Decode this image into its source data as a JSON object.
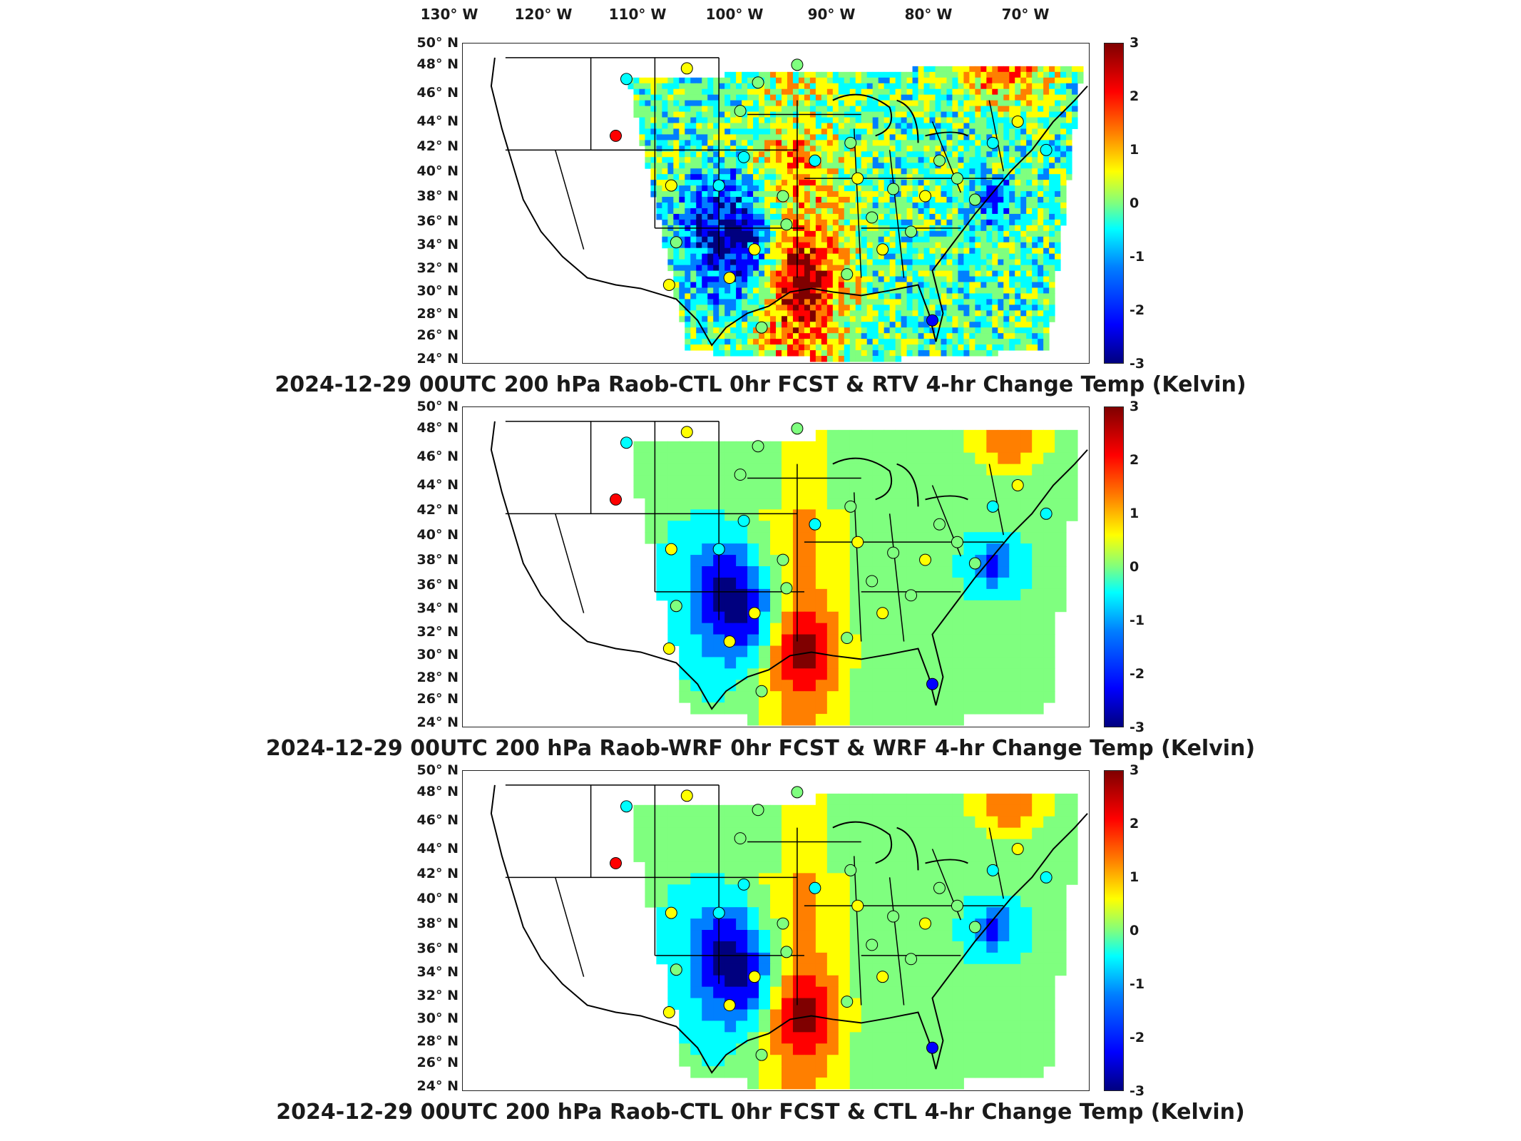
{
  "longitude_labels": [
    "130° W",
    "120° W",
    "110° W",
    "100° W",
    "90° W",
    "80° W",
    "70° W"
  ],
  "latitude_labels": [
    "50° N",
    "48° N",
    "46° N",
    "44° N",
    "42° N",
    "40° N",
    "38° N",
    "36° N",
    "34° N",
    "32° N",
    "30° N",
    "28° N",
    "26° N",
    "24° N"
  ],
  "colorbar": {
    "ticks": [
      "3",
      "2",
      "1",
      "0",
      "-1",
      "-2",
      "-3"
    ],
    "range": [
      -3,
      3
    ],
    "colormap": "jet",
    "colors": [
      "#00007f",
      "#0000ff",
      "#007fff",
      "#00ffff",
      "#7fff7f",
      "#ffff00",
      "#ff7f00",
      "#ff0000",
      "#7f0000"
    ]
  },
  "panels": [
    {
      "title": "2024-12-29 00UTC 200 hPa Raob-CTL 0hr FCST & RTV 4-hr Change Temp (Kelvin)",
      "style": "noisy"
    },
    {
      "title": "2024-12-29 00UTC 200 hPa Raob-WRF 0hr FCST & WRF 4-hr Change Temp (Kelvin)",
      "style": "smooth"
    },
    {
      "title": "2024-12-29 00UTC 200 hPa Raob-CTL 0hr FCST & CTL 4-hr Change Temp (Kelvin)",
      "style": "smooth"
    }
  ]
}
